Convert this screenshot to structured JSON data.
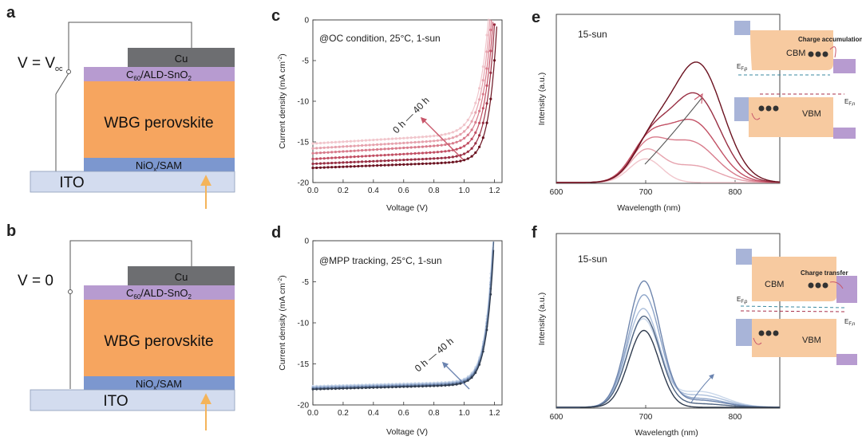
{
  "panels": {
    "a": {
      "label": "a",
      "voltage_main": "V = V",
      "voltage_sub": "oc",
      "layers": {
        "cu": "Cu",
        "etl_a": "C",
        "etl_b": "60",
        "etl_c": "/ALD-SnO",
        "etl_d": "2",
        "perov": "WBG perovskite",
        "htl_a": "NiO",
        "htl_b": "x",
        "htl_c": "/SAM",
        "ito": "ITO"
      }
    },
    "b": {
      "label": "b",
      "voltage_main": "V = 0",
      "layers": {
        "cu": "Cu",
        "etl_a": "C",
        "etl_b": "60",
        "etl_c": "/ALD-SnO",
        "etl_d": "2",
        "perov": "WBG perovskite",
        "htl_a": "NiO",
        "htl_b": "x",
        "htl_c": "/SAM",
        "ito": "ITO"
      }
    },
    "c": {
      "label": "c",
      "annotation": "@OC condition, 25°C, 1-sun",
      "arrow_label": "0 h — 40 h"
    },
    "d": {
      "label": "d",
      "annotation": "@MPP tracking, 25°C, 1-sun",
      "arrow_label": "0 h — 40 h"
    },
    "e": {
      "label": "e",
      "annotation": "15-sun",
      "inset": {
        "cbm": "CBM",
        "vbm": "VBM",
        "note": "Charge accumulation",
        "efn": "E",
        "efn_sub": "F,n",
        "efp": "E",
        "efp_sub": "F,p"
      }
    },
    "f": {
      "label": "f",
      "annotation": "15-sun",
      "inset": {
        "cbm": "CBM",
        "vbm": "VBM",
        "note": "Charge transfer",
        "efn": "E",
        "efn_sub": "F,n",
        "efp": "E",
        "efp_sub": "F,p"
      }
    }
  },
  "colors": {
    "cu": "#6d6e71",
    "etl": "#b79bd0",
    "perovskite": "#f6a55f",
    "htl": "#7c97cf",
    "ito": "#d3dcef",
    "arrow": "#f4b45a",
    "red_series": [
      "#f1c6cc",
      "#e6a2ad",
      "#d87b8b",
      "#c25064",
      "#992f43",
      "#6b1220"
    ],
    "blue_series": [
      "#c9d7ea",
      "#adc0dc",
      "#8ea5c9",
      "#6f86ae",
      "#4f6482",
      "#2f3b4e"
    ]
  },
  "chart_data": [
    {
      "id": "c",
      "type": "line",
      "xlabel": "Voltage (V)",
      "ylabel": "Current density (mA cm",
      "ylabel_sup": "-2",
      "ylabel_end": ")",
      "xlim": [
        0.0,
        1.25
      ],
      "ylim": [
        -20,
        0
      ],
      "xticks": [
        "0.0",
        "0.2",
        "0.4",
        "0.6",
        "0.8",
        "1.0",
        "1.2"
      ],
      "yticks": [
        "0",
        "-5",
        "-10",
        "-15",
        "-20"
      ],
      "x_tick_values": [
        0.0,
        0.2,
        0.4,
        0.6,
        0.8,
        1.0,
        1.2
      ],
      "y_tick_values": [
        0,
        -5,
        -10,
        -15,
        -20
      ],
      "series": [
        {
          "jsc": -15.2,
          "slope": 1.1,
          "voc": 1.165,
          "m": 0.065
        },
        {
          "jsc": -15.8,
          "slope": 1.1,
          "voc": 1.175,
          "m": 0.063
        },
        {
          "jsc": -16.4,
          "slope": 1.1,
          "voc": 1.185,
          "m": 0.06
        },
        {
          "jsc": -17.1,
          "slope": 1.0,
          "voc": 1.195,
          "m": 0.058
        },
        {
          "jsc": -17.7,
          "slope": 0.8,
          "voc": 1.205,
          "m": 0.055
        },
        {
          "jsc": -18.2,
          "slope": 0.7,
          "voc": 1.22,
          "m": 0.052
        }
      ]
    },
    {
      "id": "d",
      "type": "line",
      "xlabel": "Voltage (V)",
      "ylabel": "Current density (mA cm",
      "ylabel_sup": "-2",
      "ylabel_end": ")",
      "xlim": [
        0.0,
        1.25
      ],
      "ylim": [
        -20,
        0
      ],
      "xticks": [
        "0.0",
        "0.2",
        "0.4",
        "0.6",
        "0.8",
        "1.0",
        "1.2"
      ],
      "yticks": [
        "0",
        "-5",
        "-10",
        "-15",
        "-20"
      ],
      "x_tick_values": [
        0.0,
        0.2,
        0.4,
        0.6,
        0.8,
        1.0,
        1.2
      ],
      "y_tick_values": [
        0,
        -5,
        -10,
        -15,
        -20
      ],
      "series": [
        {
          "jsc": -17.7,
          "slope": 0.5,
          "voc": 1.19,
          "m": 0.05
        },
        {
          "jsc": -17.8,
          "slope": 0.5,
          "voc": 1.192,
          "m": 0.05
        },
        {
          "jsc": -17.9,
          "slope": 0.5,
          "voc": 1.194,
          "m": 0.05
        },
        {
          "jsc": -17.95,
          "slope": 0.5,
          "voc": 1.195,
          "m": 0.05
        },
        {
          "jsc": -18.05,
          "slope": 0.5,
          "voc": 1.197,
          "m": 0.05
        },
        {
          "jsc": -18.1,
          "slope": 0.5,
          "voc": 1.2,
          "m": 0.05
        }
      ]
    },
    {
      "id": "e",
      "type": "line",
      "xlabel": "Wavelength (nm)",
      "ylabel": "Intensity (a.u.)",
      "xlim": [
        600,
        850
      ],
      "ylim": [
        0,
        1.0
      ],
      "xticks": [
        "600",
        "700",
        "800"
      ],
      "x_tick_values": [
        600,
        700,
        800
      ],
      "series": [
        {
          "peaks": [
            [
              700,
              0.14,
              18
            ],
            [
              758,
              0.0,
              30
            ]
          ]
        },
        {
          "peaks": [
            [
              700,
              0.18,
              18
            ],
            [
              752,
              0.1,
              28
            ]
          ]
        },
        {
          "peaks": [
            [
              702,
              0.2,
              19
            ],
            [
              750,
              0.24,
              28
            ]
          ]
        },
        {
          "peaks": [
            [
              703,
              0.22,
              20
            ],
            [
              752,
              0.36,
              28
            ]
          ]
        },
        {
          "peaks": [
            [
              705,
              0.22,
              20
            ],
            [
              755,
              0.52,
              28
            ]
          ]
        },
        {
          "peaks": [
            [
              707,
              0.22,
              21
            ],
            [
              758,
              0.7,
              28
            ]
          ]
        }
      ]
    },
    {
      "id": "f",
      "type": "line",
      "xlabel": "Wavelength (nm)",
      "ylabel": "Intensity (a.u.)",
      "xlim": [
        600,
        850
      ],
      "ylim": [
        0,
        1.0
      ],
      "xticks": [
        "600",
        "700",
        "800"
      ],
      "x_tick_values": [
        600,
        700,
        800
      ],
      "series": [
        {
          "peaks": [
            [
              697,
              0.5,
              18
            ],
            [
              760,
              0.09,
              28
            ]
          ]
        },
        {
          "peaks": [
            [
              697,
              0.56,
              18
            ],
            [
              760,
              0.07,
              28
            ]
          ]
        },
        {
          "peaks": [
            [
              698,
              0.64,
              18
            ],
            [
              760,
              0.05,
              28
            ]
          ]
        },
        {
          "peaks": [
            [
              698,
              0.72,
              18
            ],
            [
              760,
              0.04,
              28
            ]
          ]
        },
        {
          "peaks": [
            [
              698,
              0.52,
              18
            ],
            [
              760,
              0.02,
              28
            ]
          ]
        },
        {
          "peaks": [
            [
              698,
              0.44,
              17
            ],
            [
              760,
              0.0,
              28
            ]
          ]
        }
      ]
    }
  ]
}
